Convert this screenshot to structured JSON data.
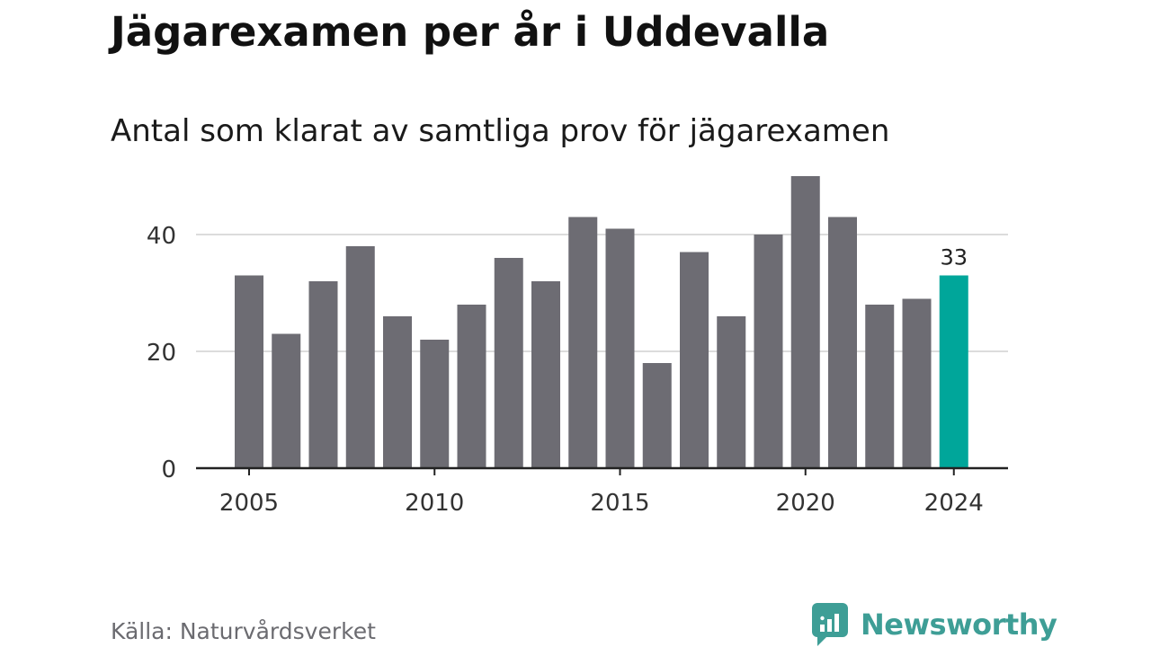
{
  "title": "Jägarexamen per år i Uddevalla",
  "subtitle": "Antal som klarat av samtliga prov för jägarexamen",
  "source": "Källa: Naturvårdsverket",
  "brand": {
    "name": "Newsworthy",
    "icon": "newsworthy-logo-icon"
  },
  "colors": {
    "bar": "#6d6c73",
    "highlight": "#00a69a",
    "grid": "#dcdcdc",
    "axis": "#222222",
    "brand": "#3e9e96"
  },
  "chart_data": {
    "type": "bar",
    "title": "Jägarexamen per år i Uddevalla",
    "subtitle": "Antal som klarat av samtliga prov för jägarexamen",
    "xlabel": "",
    "ylabel": "",
    "categories": [
      "2005",
      "2006",
      "2007",
      "2008",
      "2009",
      "2010",
      "2011",
      "2012",
      "2013",
      "2014",
      "2015",
      "2016",
      "2017",
      "2018",
      "2019",
      "2020",
      "2021",
      "2022",
      "2023",
      "2024"
    ],
    "values": [
      33,
      23,
      32,
      38,
      26,
      22,
      28,
      36,
      32,
      43,
      41,
      18,
      37,
      26,
      40,
      50,
      43,
      28,
      29,
      33
    ],
    "highlight": {
      "category": "2024",
      "label": "33"
    },
    "ylim": [
      0,
      50
    ],
    "yticks": [
      0,
      20,
      40
    ],
    "yticklabels": [
      "0",
      "20",
      "40"
    ],
    "xticklabels": [
      "2005",
      "2010",
      "2015",
      "2020",
      "2024"
    ],
    "grid": true,
    "legend": "none"
  }
}
